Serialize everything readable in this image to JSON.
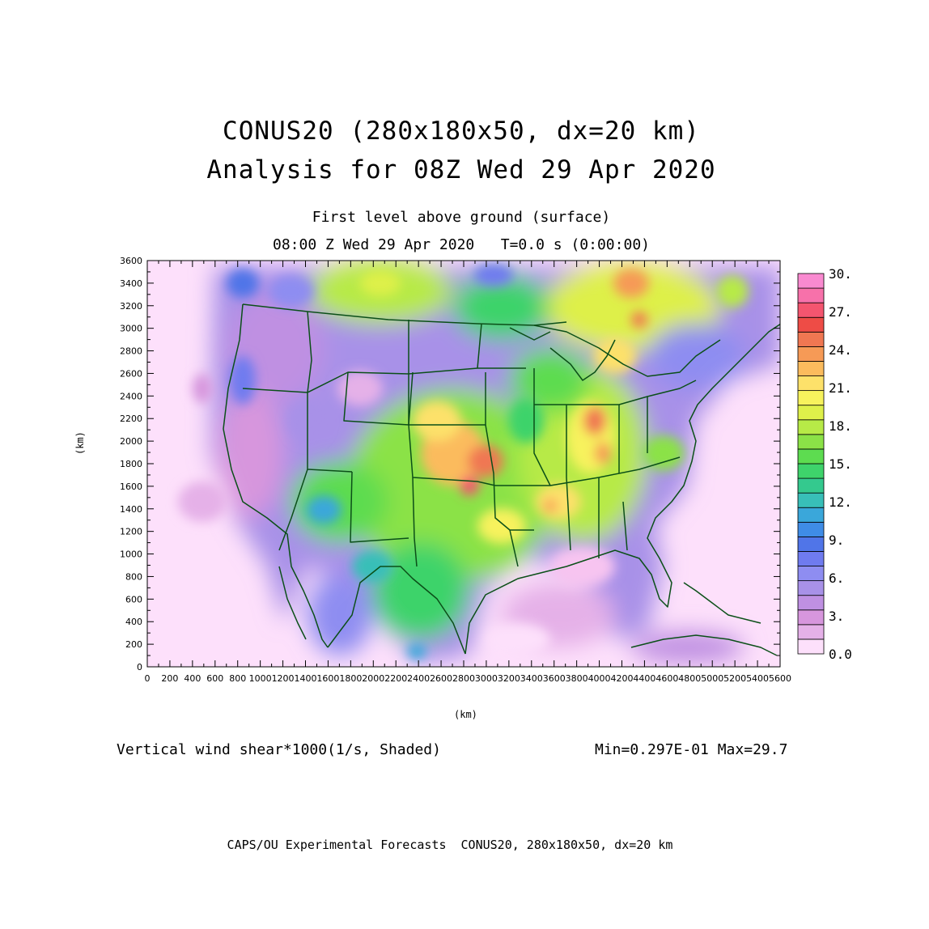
{
  "titles": {
    "line1": "CONUS20 (280x180x50, dx=20 km)",
    "line2": "Analysis for 08Z Wed 29 Apr 2020",
    "subtitle1": "First level above ground (surface)",
    "subtitle2": "08:00 Z Wed 29 Apr 2020   T=0.0 s (0:00:00)"
  },
  "axes": {
    "x_unit": "(km)",
    "y_unit": "(km)",
    "x_range": [
      0,
      5600
    ],
    "y_range": [
      0,
      3600
    ],
    "x_ticks": [
      "0",
      "200",
      "400",
      "600",
      "800",
      "1000",
      "1200",
      "1400",
      "1600",
      "1800",
      "2000",
      "2200",
      "2400",
      "2600",
      "2800",
      "3000",
      "3200",
      "3400",
      "3600",
      "3800",
      "4000",
      "4200",
      "4400",
      "4600",
      "4800",
      "5000",
      "5200",
      "5400",
      "5600"
    ],
    "y_ticks": [
      "0",
      "200",
      "400",
      "600",
      "800",
      "1000",
      "1200",
      "1400",
      "1600",
      "1800",
      "2000",
      "2200",
      "2400",
      "2600",
      "2800",
      "3000",
      "3200",
      "3400",
      "3600"
    ]
  },
  "colorbar": {
    "labels": [
      "30.",
      "27.",
      "24.",
      "21.",
      "18.",
      "15.",
      "12.",
      "9.",
      "6.",
      "3.",
      "0.0"
    ],
    "colors": [
      "#fde0fb",
      "#e5b1e8",
      "#d796dd",
      "#bf90e2",
      "#a891e8",
      "#8e8df1",
      "#6f7bef",
      "#5075e8",
      "#3f8ce6",
      "#3aa7da",
      "#38bfb8",
      "#34c98e",
      "#3ed36b",
      "#5ddc50",
      "#8be247",
      "#b7ea47",
      "#def04a",
      "#f7f25d",
      "#fde16a",
      "#fbbb5d",
      "#f69a56",
      "#f07752",
      "#ee4c46",
      "#f4556f",
      "#f771aa",
      "#f98ad0"
    ]
  },
  "field": {
    "variable": "Vertical wind shear*1000(1/s, Shaded)",
    "min_max": "Min=0.297E-01 Max=29.7",
    "min": 0.0297,
    "max": 29.7
  },
  "footer": "CAPS/OU Experimental Forecasts  CONUS20, 280x180x50, dx=20 km"
}
